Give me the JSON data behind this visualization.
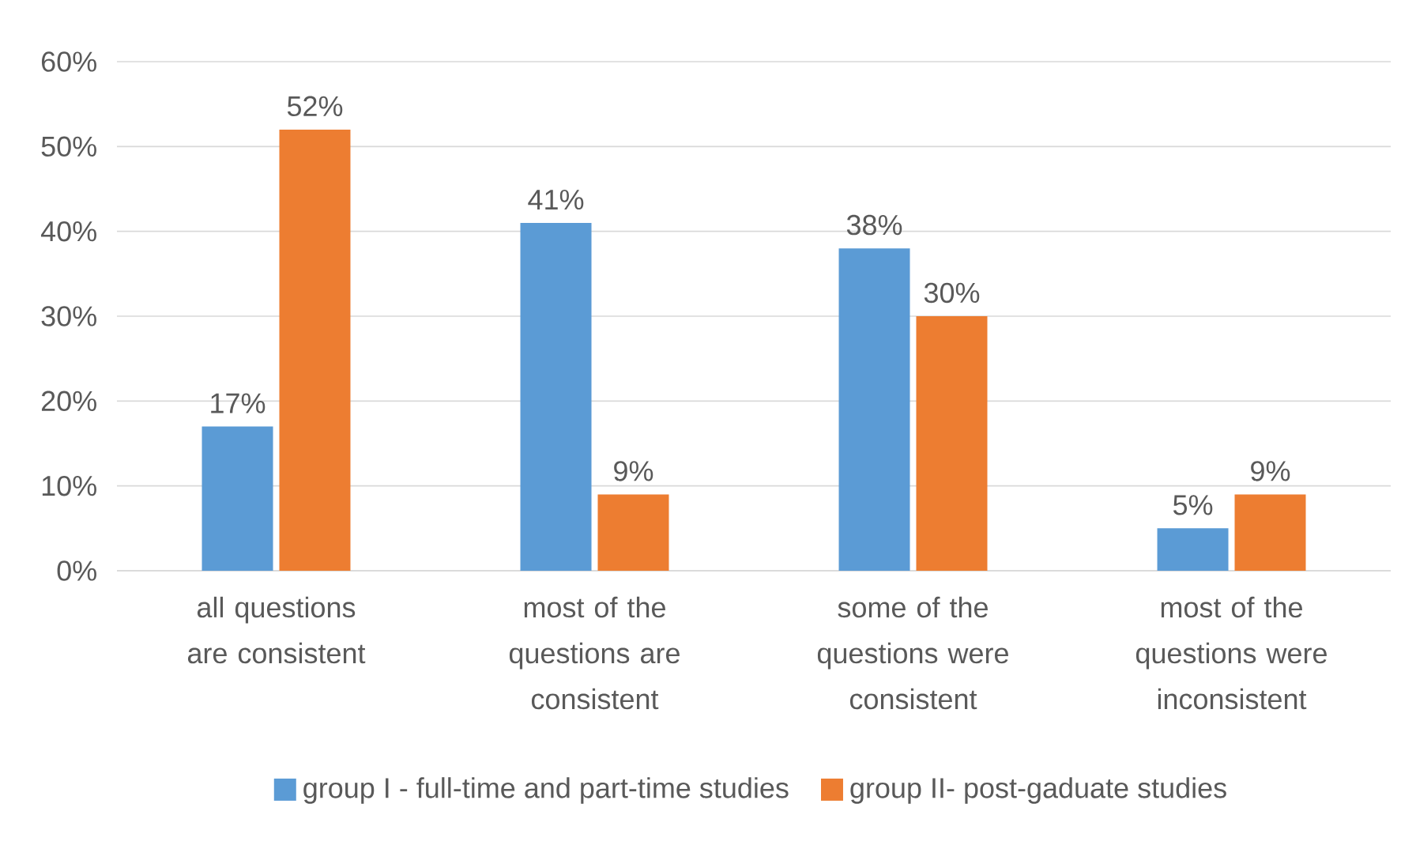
{
  "chart_data": {
    "type": "bar",
    "categories": [
      "all questions are consistent",
      "most of the questions are consistent",
      "some of the questions were consistent",
      "most of the questions were inconsistent"
    ],
    "series": [
      {
        "name": "group I - full-time and part-time studies",
        "color": "#5b9bd5",
        "values": [
          17,
          41,
          38,
          5
        ],
        "value_labels": [
          "17%",
          "41%",
          "38%",
          "5%"
        ]
      },
      {
        "name": "group II- post-gaduate studies",
        "color": "#ed7d31",
        "values": [
          52,
          9,
          30,
          9
        ],
        "value_labels": [
          "52%",
          "9%",
          "30%",
          "9%"
        ]
      }
    ],
    "ylim": [
      0,
      60
    ],
    "yticks": [
      {
        "value": 0,
        "label": "0%"
      },
      {
        "value": 10,
        "label": "10%"
      },
      {
        "value": 20,
        "label": "20%"
      },
      {
        "value": 30,
        "label": "30%"
      },
      {
        "value": 40,
        "label": "40%"
      },
      {
        "value": 50,
        "label": "50%"
      },
      {
        "value": 60,
        "label": "60%"
      }
    ],
    "grid": "y",
    "legend": "bottom"
  }
}
